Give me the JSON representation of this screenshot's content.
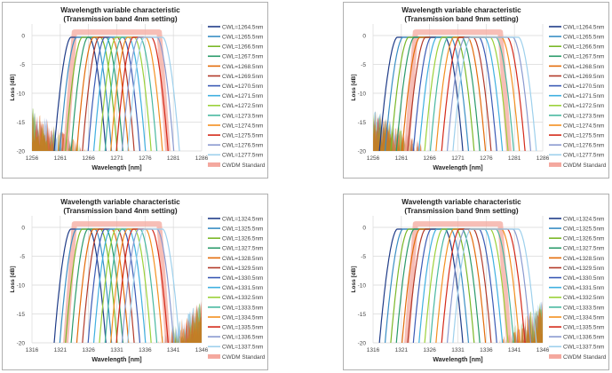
{
  "chart_data": [
    {
      "type": "line",
      "title": [
        "Wavelength variable characteristic",
        "(Transmission band 4nm setting)"
      ],
      "xlabel": "Wavelength [nm]",
      "ylabel": "Loss [dB]",
      "xlim": [
        1256,
        1286
      ],
      "ylim": [
        -20,
        2
      ],
      "xticks": [
        "1256",
        "1261",
        "1266",
        "1271",
        "1276",
        "1281",
        "1286"
      ],
      "yticks": [
        "0",
        "-5",
        "-10",
        "-15",
        "-20"
      ],
      "grid": true,
      "legend": "right",
      "band_nm": 4,
      "noise_side": "left",
      "series": [
        {
          "name": "CWL=1264.5nm",
          "cwl": 1264.5
        },
        {
          "name": "CWL=1265.5nm",
          "cwl": 1265.5
        },
        {
          "name": "CWL=1266.5nm",
          "cwl": 1266.5
        },
        {
          "name": "CWL=1267.5nm",
          "cwl": 1267.5
        },
        {
          "name": "CWL=1268.5nm",
          "cwl": 1268.5
        },
        {
          "name": "CWL=1269.5nm",
          "cwl": 1269.5
        },
        {
          "name": "CWL=1270.5nm",
          "cwl": 1270.5
        },
        {
          "name": "CWL=1271.5nm",
          "cwl": 1271.5
        },
        {
          "name": "CWL=1272.5nm",
          "cwl": 1272.5
        },
        {
          "name": "CWL=1273.5nm",
          "cwl": 1273.5
        },
        {
          "name": "CWL=1274.5nm",
          "cwl": 1274.5
        },
        {
          "name": "CWL=1275.5nm",
          "cwl": 1275.5
        },
        {
          "name": "CWL=1276.5nm",
          "cwl": 1276.5
        },
        {
          "name": "CWL=1277.5nm",
          "cwl": 1277.5
        }
      ],
      "standard": {
        "name": "CWDM Standard",
        "range": [
          1263.5,
          1278.5
        ]
      }
    },
    {
      "type": "line",
      "title": [
        "Wavelength variable characteristic",
        "(Transmission band 9nm setting)"
      ],
      "xlabel": "Wavelength [nm]",
      "ylabel": "Loss [dB]",
      "xlim": [
        1256,
        1286
      ],
      "ylim": [
        -20,
        2
      ],
      "xticks": [
        "1256",
        "1261",
        "1266",
        "1271",
        "1276",
        "1281",
        "1286"
      ],
      "yticks": [
        "0",
        "-5",
        "-10",
        "-15",
        "-20"
      ],
      "grid": true,
      "legend": "right",
      "band_nm": 9,
      "noise_side": "left",
      "series": [
        {
          "name": "CWL=1264.5nm",
          "cwl": 1264.5
        },
        {
          "name": "CWL=1265.5nm",
          "cwl": 1265.5
        },
        {
          "name": "CWL=1266.5nm",
          "cwl": 1266.5
        },
        {
          "name": "CWL=1267.5nm",
          "cwl": 1267.5
        },
        {
          "name": "CWL=1268.5nm",
          "cwl": 1268.5
        },
        {
          "name": "CWL=1269.5nm",
          "cwl": 1269.5
        },
        {
          "name": "CWL=1270.5nm",
          "cwl": 1270.5
        },
        {
          "name": "CWL=1271.5nm",
          "cwl": 1271.5
        },
        {
          "name": "CWL=1272.5nm",
          "cwl": 1272.5
        },
        {
          "name": "CWL=1273.5nm",
          "cwl": 1273.5
        },
        {
          "name": "CWL=1274.5nm",
          "cwl": 1274.5
        },
        {
          "name": "CWL=1275.5nm",
          "cwl": 1275.5
        },
        {
          "name": "CWL=1276.5nm",
          "cwl": 1276.5
        },
        {
          "name": "CWL=1277.5nm",
          "cwl": 1277.5
        }
      ],
      "standard": {
        "name": "CWDM Standard",
        "range": [
          1263.5,
          1278.5
        ]
      }
    },
    {
      "type": "line",
      "title": [
        "Wavelength variable characteristic",
        "(Transmission band 4nm setting)"
      ],
      "xlabel": "Wavelength [nm]",
      "ylabel": "Loss [dB]",
      "xlim": [
        1316,
        1346
      ],
      "ylim": [
        -20,
        2
      ],
      "xticks": [
        "1316",
        "1321",
        "1326",
        "1331",
        "1336",
        "1341",
        "1346"
      ],
      "yticks": [
        "0",
        "-5",
        "-10",
        "-15",
        "-20"
      ],
      "grid": true,
      "legend": "right",
      "band_nm": 4,
      "noise_side": "right",
      "series": [
        {
          "name": "CWL=1324.5nm",
          "cwl": 1324.5
        },
        {
          "name": "CWL=1325.5nm",
          "cwl": 1325.5
        },
        {
          "name": "CWL=1326.5nm",
          "cwl": 1326.5
        },
        {
          "name": "CWL=1327.5nm",
          "cwl": 1327.5
        },
        {
          "name": "CWL=1328.5nm",
          "cwl": 1328.5
        },
        {
          "name": "CWL=1329.5nm",
          "cwl": 1329.5
        },
        {
          "name": "CWL=1330.5nm",
          "cwl": 1330.5
        },
        {
          "name": "CWL=1331.5nm",
          "cwl": 1331.5
        },
        {
          "name": "CWL=1332.5nm",
          "cwl": 1332.5
        },
        {
          "name": "CWL=1333.5nm",
          "cwl": 1333.5
        },
        {
          "name": "CWL=1334.5nm",
          "cwl": 1334.5
        },
        {
          "name": "CWL=1335.5nm",
          "cwl": 1335.5
        },
        {
          "name": "CWL=1336.5nm",
          "cwl": 1336.5
        },
        {
          "name": "CWL=1337.5nm",
          "cwl": 1337.5
        }
      ],
      "standard": {
        "name": "CWDM Standard",
        "range": [
          1323.5,
          1338.5
        ]
      }
    },
    {
      "type": "line",
      "title": [
        "Wavelength variable characteristic",
        "(Transmission band 9nm setting)"
      ],
      "xlabel": "Wavelength [nm]",
      "ylabel": "Loss [dB]",
      "xlim": [
        1316,
        1346
      ],
      "ylim": [
        -20,
        2
      ],
      "xticks": [
        "1316",
        "1321",
        "1326",
        "1331",
        "1336",
        "1341",
        "1346"
      ],
      "yticks": [
        "0",
        "-5",
        "-10",
        "-15",
        "-20"
      ],
      "grid": true,
      "legend": "right",
      "band_nm": 9,
      "noise_side": "right",
      "series": [
        {
          "name": "CWL=1324.5nm",
          "cwl": 1324.5
        },
        {
          "name": "CWL=1325.5nm",
          "cwl": 1325.5
        },
        {
          "name": "CWL=1326.5nm",
          "cwl": 1326.5
        },
        {
          "name": "CWL=1327.5nm",
          "cwl": 1327.5
        },
        {
          "name": "CWL=1328.5nm",
          "cwl": 1328.5
        },
        {
          "name": "CWL=1329.5nm",
          "cwl": 1329.5
        },
        {
          "name": "CWL=1330.5nm",
          "cwl": 1330.5
        },
        {
          "name": "CWL=1331.5nm",
          "cwl": 1331.5
        },
        {
          "name": "CWL=1332.5nm",
          "cwl": 1332.5
        },
        {
          "name": "CWL=1333.5nm",
          "cwl": 1333.5
        },
        {
          "name": "CWL=1334.5nm",
          "cwl": 1334.5
        },
        {
          "name": "CWL=1335.5nm",
          "cwl": 1335.5
        },
        {
          "name": "CWL=1336.5nm",
          "cwl": 1336.5
        },
        {
          "name": "CWL=1337.5nm",
          "cwl": 1337.5
        }
      ],
      "standard": {
        "name": "CWDM Standard",
        "range": [
          1323.5,
          1338.5
        ]
      }
    }
  ],
  "colors": {
    "series": [
      "#1f3c88",
      "#3a8fc4",
      "#7ab828",
      "#2a9a6a",
      "#e36c0a",
      "#b23a2a",
      "#3b5bb5",
      "#3fb0e0",
      "#9bd13a",
      "#48b8a0",
      "#f39020",
      "#d42a1a",
      "#8a9ad0",
      "#9ed0ec"
    ],
    "standard": "#f4a89e",
    "grid": "#d9d9d9",
    "frame": "#b0b0b0"
  }
}
